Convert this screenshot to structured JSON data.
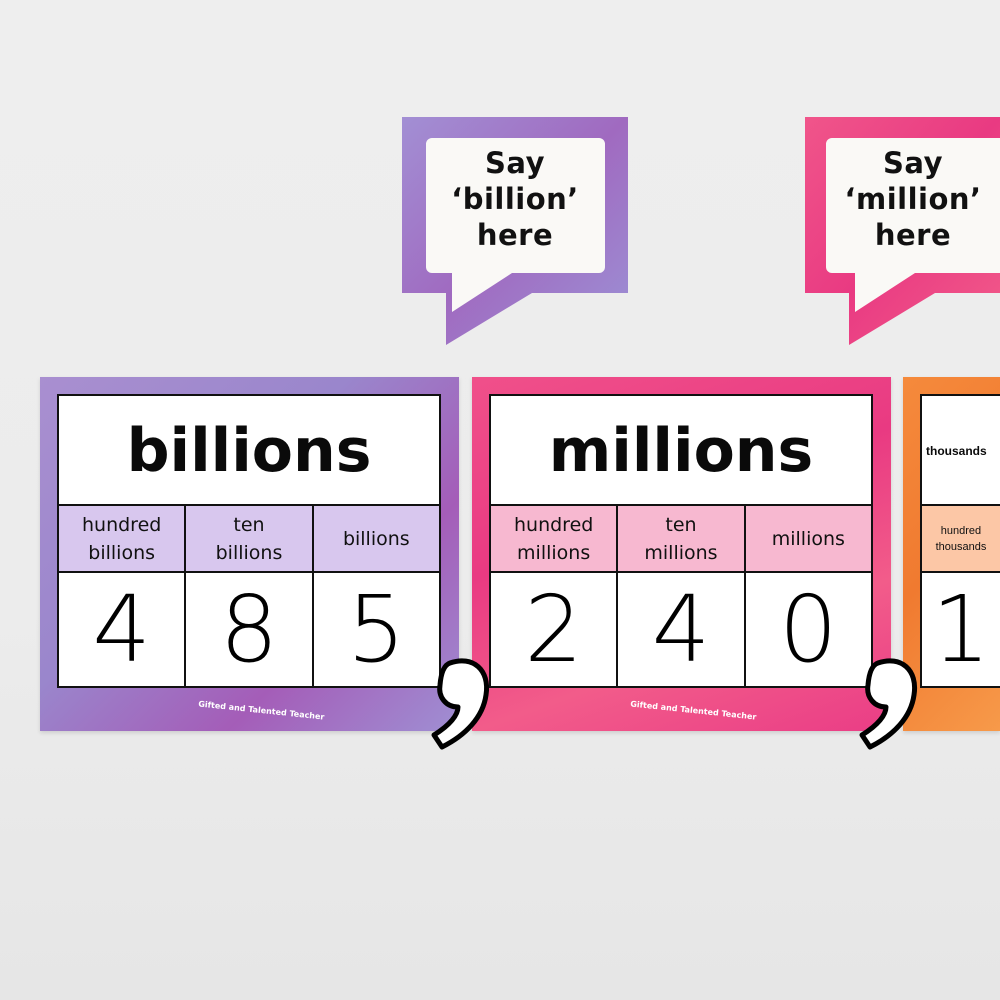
{
  "bubbles": [
    {
      "line1": "Say",
      "line2": "‘billion’",
      "line3": "here",
      "color": "#9b8dcf"
    },
    {
      "line1": "Say",
      "line2": "‘million’",
      "line3": "here",
      "color": "#ee3f86"
    }
  ],
  "posters": [
    {
      "title": "billions",
      "labels": [
        "hundred\nbillions",
        "ten\nbillions",
        "billions"
      ],
      "digits": [
        "4",
        "8",
        "5"
      ],
      "brand": "Gifted and Talented Teacher"
    },
    {
      "title": "millions",
      "labels": [
        "hundred\nmillions",
        "ten\nmillions",
        "millions"
      ],
      "digits": [
        "2",
        "4",
        "0"
      ],
      "brand": "Gifted and Talented Teacher"
    },
    {
      "title": "thousands",
      "labels": [
        "hundred\nthousands"
      ],
      "digits": [
        "1"
      ]
    }
  ]
}
